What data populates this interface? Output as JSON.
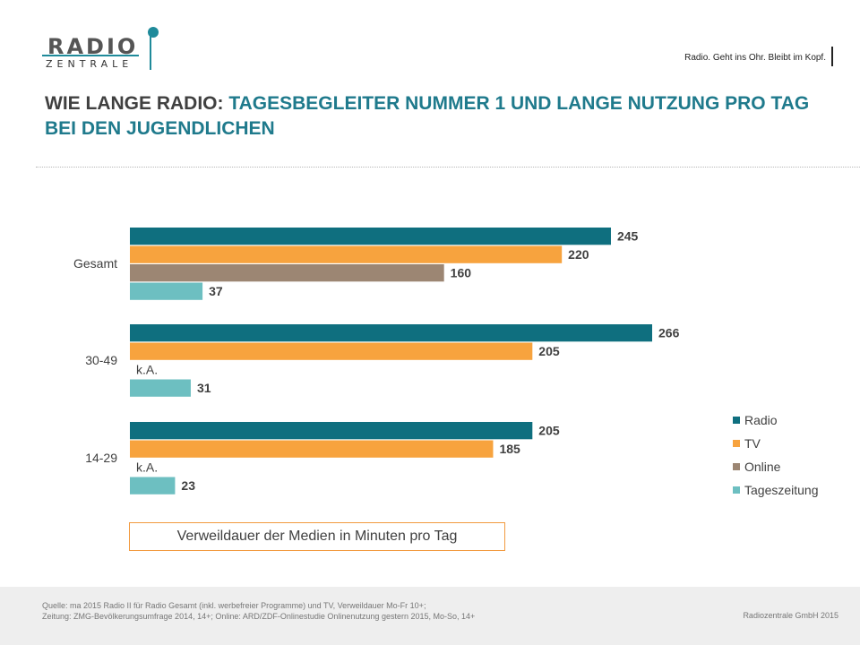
{
  "header": {
    "logo": {
      "word1": "RADIO",
      "word2": "ZENTRALE"
    },
    "slogan": "Radio. Geht ins Ohr. Bleibt im Kopf."
  },
  "title": {
    "part1": "WIE LANGE RADIO:",
    "part2": "TAGESBEGLEITER NUMMER 1 UND LANGE NUTZUNG PRO TAG BEI DEN JUGENDLICHEN"
  },
  "chart_data": {
    "type": "bar",
    "orientation": "horizontal",
    "categories": [
      "Gesamt",
      "30-49",
      "14-29"
    ],
    "series": [
      {
        "name": "Radio",
        "color": "#0f6f7f",
        "values": [
          245,
          266,
          205
        ],
        "labels": [
          "245",
          "266",
          "205"
        ]
      },
      {
        "name": "TV",
        "color": "#f7a33e",
        "values": [
          220,
          205,
          185
        ],
        "labels": [
          "220",
          "205",
          "185"
        ]
      },
      {
        "name": "Online",
        "color": "#9c8673",
        "values": [
          160,
          null,
          null
        ],
        "labels": [
          "160",
          "k.A.",
          "k.A."
        ]
      },
      {
        "name": "Tageszeitung",
        "color": "#6dbfc1",
        "values": [
          37,
          31,
          23
        ],
        "labels": [
          "37",
          "31",
          "23"
        ]
      }
    ],
    "xlim": [
      0,
      266
    ],
    "legend_position": "right",
    "grid": false,
    "caption": "Verweildauer der Medien in Minuten pro Tag"
  },
  "footer": {
    "source_lines": [
      "Quelle: ma 2015 Radio II für Radio Gesamt (inkl. werbefreier Programme) und TV, Verweildauer Mo-Fr 10+;",
      "Zeitung: ZMG-Bevölkerungsumfrage 2014, 14+; Online: ARD/ZDF-Onlinestudie Onlinenutzung gestern 2015, Mo-So, 14+"
    ],
    "copyright": "Radiozentrale GmbH 2015"
  }
}
